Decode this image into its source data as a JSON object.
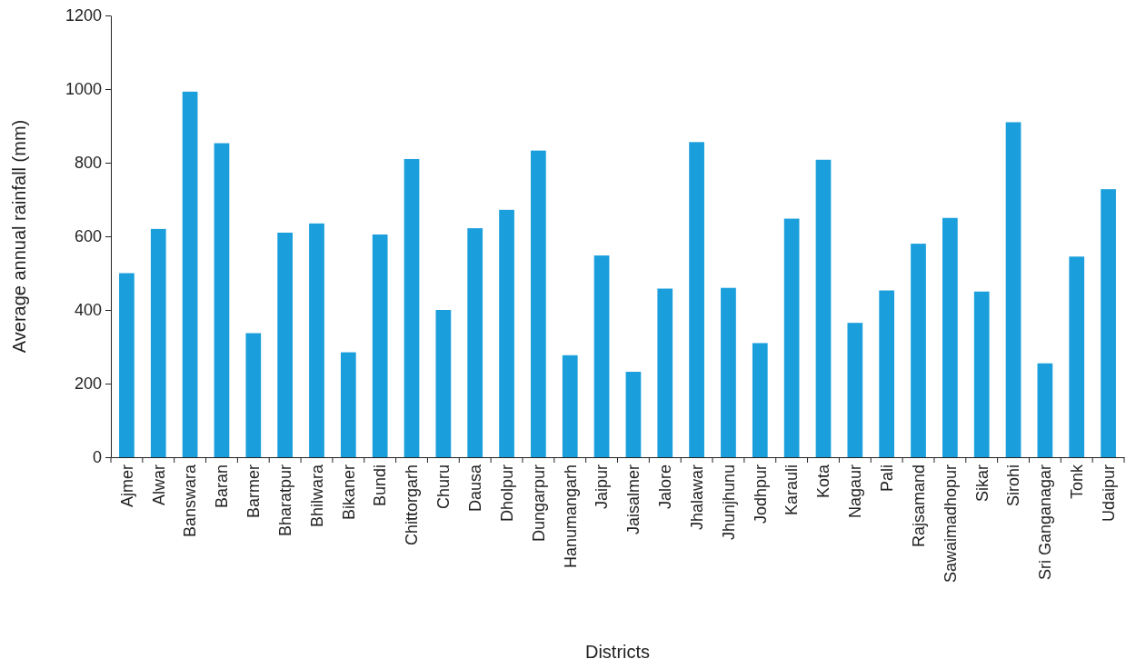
{
  "chart_data": {
    "type": "bar",
    "xlabel": "Districts",
    "ylabel": "Average annual rainfall (mm)",
    "categories": [
      "Ajmer",
      "Alwar",
      "Banswara",
      "Baran",
      "Barmer",
      "Bharatpur",
      "Bhilwara",
      "Bikaner",
      "Bundi",
      "Chittorgarh",
      "Churu",
      "Dausa",
      "Dholpur",
      "Dungarpur",
      "Hanumangarh",
      "Jaipur",
      "Jaisalmer",
      "Jalore",
      "Jhalawar",
      "Jhunjhunu",
      "Jodhpur",
      "Karauli",
      "Kota",
      "Nagaur",
      "Pali",
      "Rajsamand",
      "Sawaimadhopur",
      "Sikar",
      "Sirohi",
      "Sri Ganganagar",
      "Tonk",
      "Udaipur"
    ],
    "values": [
      500,
      620,
      993,
      853,
      337,
      610,
      635,
      285,
      605,
      810,
      400,
      622,
      672,
      833,
      277,
      548,
      232,
      458,
      856,
      460,
      310,
      648,
      808,
      365,
      453,
      580,
      650,
      450,
      910,
      255,
      545,
      728
    ],
    "color": "#1b9fdc",
    "ylim": [
      0,
      1200
    ],
    "yticks": [
      0,
      200,
      400,
      600,
      800,
      1000,
      1200
    ],
    "grid": false
  }
}
